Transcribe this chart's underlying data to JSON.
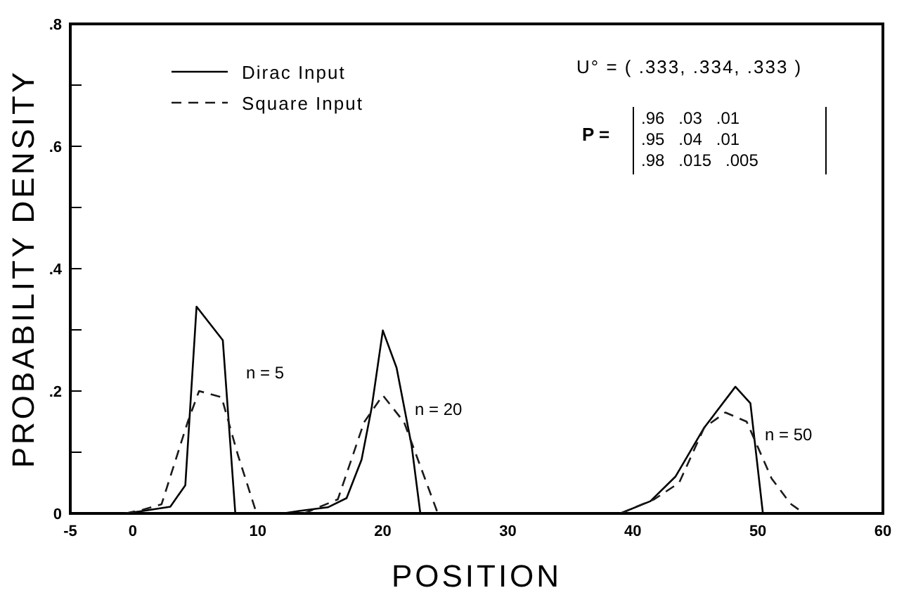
{
  "chart_data": {
    "type": "line",
    "xlabel": "POSITION",
    "ylabel": "PROBABILITY  DENSITY",
    "xlim": [
      -5,
      60
    ],
    "xticks": [
      -5,
      0,
      10,
      20,
      30,
      40,
      50,
      60
    ],
    "ylim": [
      0,
      0.8
    ],
    "yticks": [
      0,
      {
        "value": 0.1,
        "label": null
      },
      {
        "value": 0.2,
        "label": ".2"
      },
      {
        "value": 0.3,
        "label": null
      },
      {
        "value": 0.4,
        "label": ".4"
      },
      {
        "value": 0.5,
        "label": null
      },
      {
        "value": 0.6,
        "label": ".6"
      },
      {
        "value": 0.7,
        "label": null
      },
      {
        "value": 0.8,
        "label": ".8"
      }
    ],
    "legend": "top left",
    "marker": "none",
    "series": [
      {
        "name": "Dirac Input",
        "color": "#000000",
        "line_style": "solid",
        "x": [
          -0.6,
          0.8,
          3.0,
          4.2,
          5.1,
          7.2,
          8.2,
          9,
          12,
          13.3,
          15.6,
          17.1,
          18.3,
          19.1,
          20,
          21.1,
          22.3,
          23,
          30,
          39,
          41.4,
          43.4,
          45.7,
          48.2,
          49.4,
          50.4
        ],
        "values": [
          0,
          0.004,
          0.011,
          0.046,
          0.338,
          0.283,
          0,
          null,
          0,
          0.004,
          0.01,
          0.025,
          0.088,
          0.172,
          0.299,
          0.238,
          0.111,
          0,
          null,
          0,
          0.02,
          0.06,
          0.14,
          0.207,
          0.18,
          0
        ]
      },
      {
        "name": "Square Input",
        "color": "#1a1a1a",
        "line_style": "dashed",
        "x": [
          -0.6,
          0.8,
          2.3,
          4.4,
          5.3,
          7.1,
          8.4,
          9.9,
          12,
          13.7,
          16.4,
          18.5,
          20,
          21.7,
          24.4,
          30,
          39,
          41.7,
          43.7,
          45.7,
          47.4,
          49.1,
          51.1,
          52.6,
          53.7
        ],
        "values": [
          0,
          0.006,
          0.015,
          0.15,
          0.2,
          0.19,
          0.096,
          0,
          null,
          0,
          0.023,
          0.149,
          0.193,
          0.149,
          0,
          null,
          0,
          0.023,
          0.05,
          0.14,
          0.165,
          0.15,
          0.057,
          0.016,
          0
        ]
      }
    ],
    "annotations": [
      "n = 5",
      "n = 20",
      "n = 50",
      "U° = ( .333, .334, .333 )",
      "P =",
      ".96   .03   .01",
      ".95   .04   .01",
      ".98   .015   .005"
    ]
  }
}
